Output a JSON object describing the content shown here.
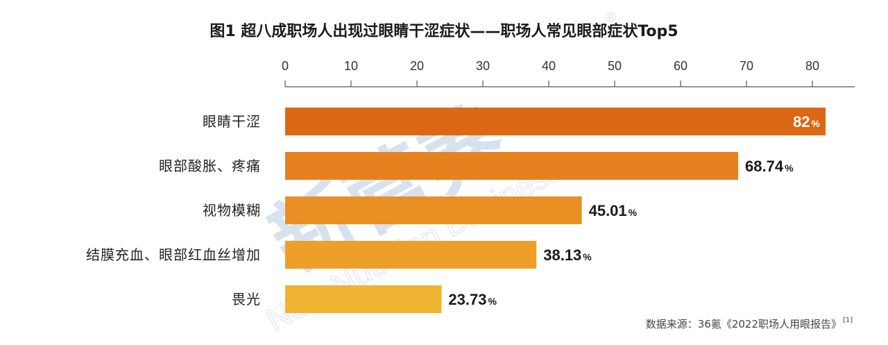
{
  "chart_data": {
    "type": "bar",
    "orientation": "horizontal",
    "title": "图1  超八成职场人出现过眼睛干涩症状——职场人常见眼部症状Top5",
    "categories": [
      "眼睛干涩",
      "眼部酸胀、疼痛",
      "视物模糊",
      "结膜充血、眼部红血丝增加",
      "畏光"
    ],
    "values": [
      82,
      68.74,
      45.01,
      38.13,
      23.73
    ],
    "value_labels": [
      "82",
      "68.74",
      "45.01",
      "38.13",
      "23.73"
    ],
    "value_suffix": "%",
    "bar_colors": [
      "#dc6714",
      "#e6811e",
      "#e98f24",
      "#ee9f2a",
      "#f1b332"
    ],
    "x_ticks": [
      0,
      10,
      20,
      30,
      40,
      50,
      60,
      70,
      80
    ],
    "xlim": [
      0,
      86
    ],
    "axis_position": "top",
    "grid": false,
    "legend": "none"
  },
  "source": {
    "text": "数据来源：36氪《2022职场人用眼报告》",
    "ref": "[1]"
  },
  "watermark": {
    "cn": "新营养",
    "en": "New Nutrition Business",
    "mark": "®"
  }
}
